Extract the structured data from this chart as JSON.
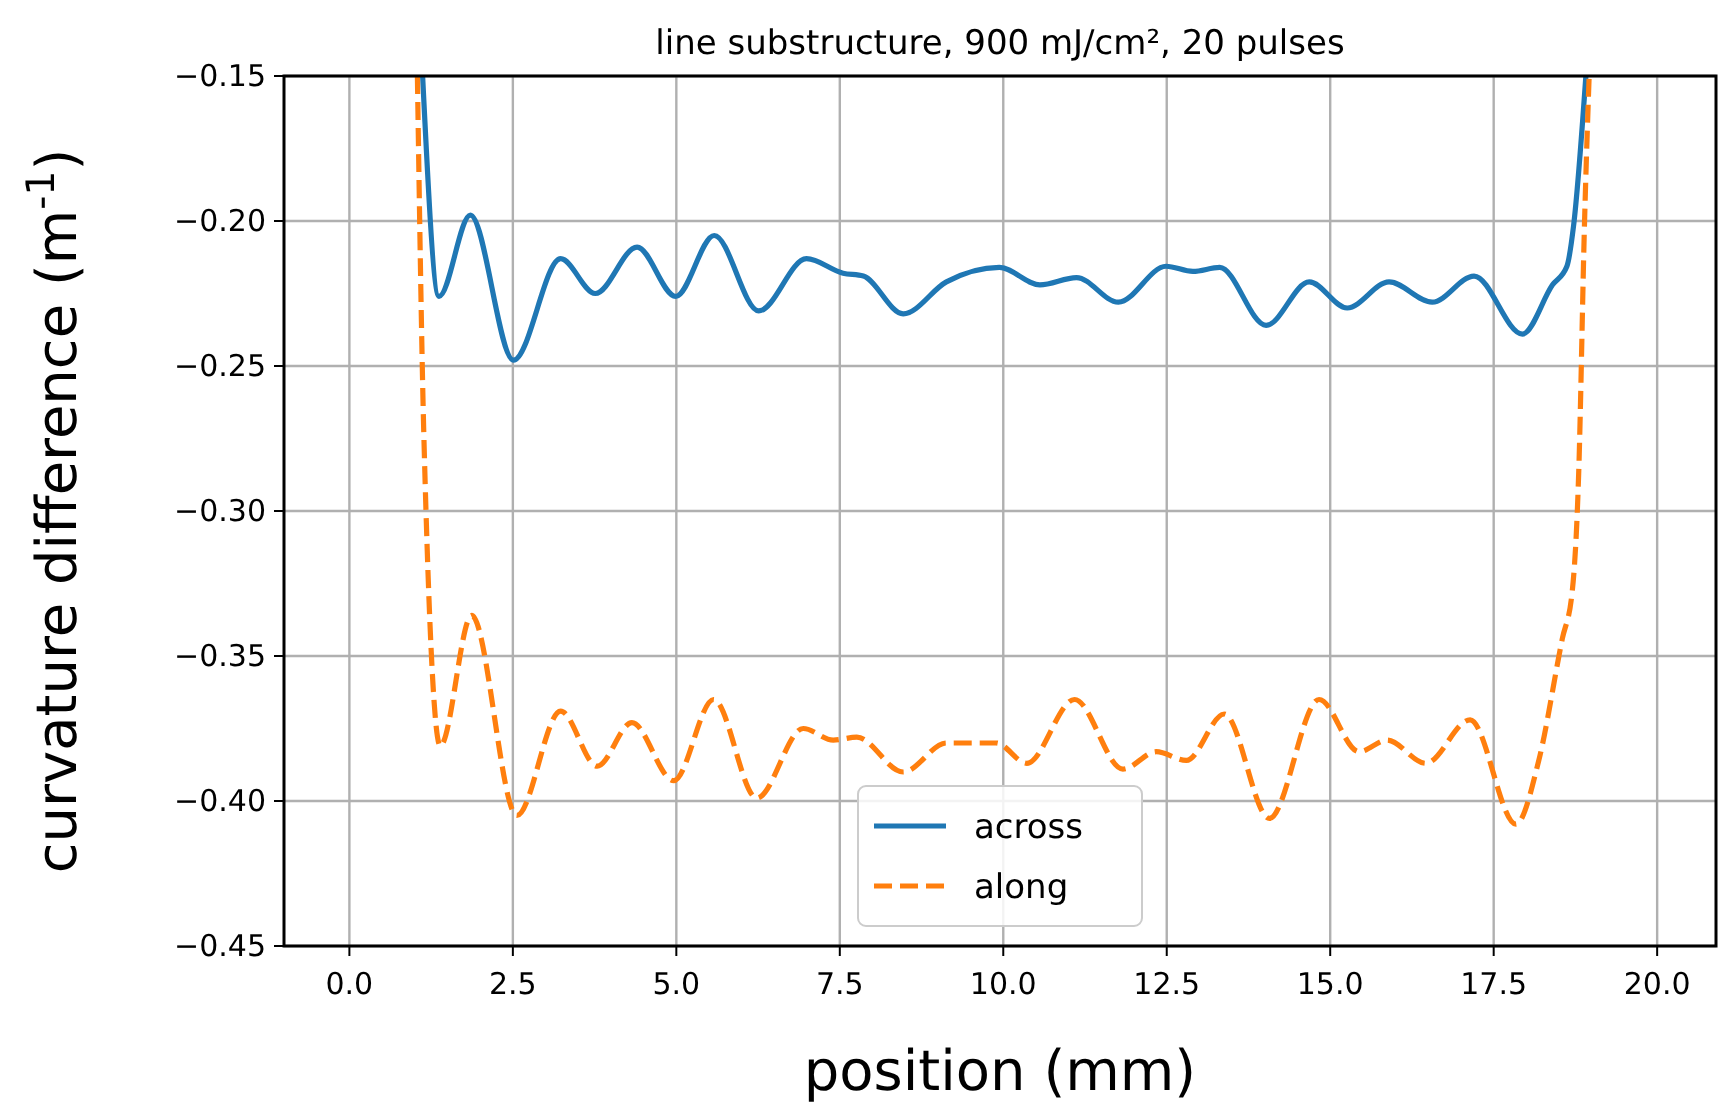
{
  "chart_data": {
    "type": "line",
    "title": "line substructure, 900 mJ/cm², 20 pulses",
    "xlabel": "position (mm)",
    "ylabel": "curvature difference (m$^{-1}$)",
    "xlim": [
      -1,
      20.9
    ],
    "xticks": [
      {
        "value": 0,
        "label": "0.0"
      },
      {
        "value": 2.5,
        "label": "2.5"
      },
      {
        "value": 5,
        "label": "5.0"
      },
      {
        "value": 7.5,
        "label": "7.5"
      },
      {
        "value": 10,
        "label": "10.0"
      },
      {
        "value": 12.5,
        "label": "12.5"
      },
      {
        "value": 15,
        "label": "15.0"
      },
      {
        "value": 17.5,
        "label": "17.5"
      },
      {
        "value": 20,
        "label": "20.0"
      }
    ],
    "ylim": [
      -0.45,
      -0.15
    ],
    "yticks": [
      {
        "value": -0.45,
        "label": "−0.45"
      },
      {
        "value": -0.4,
        "label": "−0.40"
      },
      {
        "value": -0.35,
        "label": "−0.35"
      },
      {
        "value": -0.3,
        "label": "−0.30"
      },
      {
        "value": -0.25,
        "label": "−0.25"
      },
      {
        "value": -0.2,
        "label": "−0.20"
      },
      {
        "value": -0.15,
        "label": "−0.15"
      }
    ],
    "grid": true,
    "legend": "bottom",
    "marker": "none",
    "series": [
      {
        "name": "across",
        "color": "#1f77b4",
        "line_style": "solid",
        "x": [
          1.12,
          1.37,
          1.85,
          2.51,
          3.23,
          3.76,
          4.4,
          4.99,
          5.58,
          6.26,
          6.99,
          7.55,
          7.86,
          8.47,
          9.13,
          9.94,
          10.56,
          11.12,
          11.76,
          12.49,
          12.9,
          13.31,
          14.02,
          14.68,
          15.26,
          15.9,
          16.56,
          17.2,
          17.94,
          18.4,
          18.62,
          18.72,
          18.91
        ],
        "values": [
          -0.15,
          -0.226,
          -0.198,
          -0.248,
          -0.213,
          -0.225,
          -0.209,
          -0.226,
          -0.205,
          -0.231,
          -0.213,
          -0.218,
          -0.219,
          -0.232,
          -0.221,
          -0.216,
          -0.222,
          -0.2195,
          -0.228,
          -0.2156,
          -0.2174,
          -0.216,
          -0.236,
          -0.221,
          -0.23,
          -0.221,
          -0.228,
          -0.219,
          -0.239,
          -0.222,
          -0.2156,
          -0.202,
          -0.15
        ]
      },
      {
        "name": "along",
        "color": "#ff7f0e",
        "line_style": "dashed",
        "x": [
          1.04,
          1.14,
          1.39,
          1.87,
          2.56,
          3.23,
          3.79,
          4.32,
          4.96,
          5.57,
          6.23,
          6.94,
          7.4,
          7.76,
          8.47,
          9.13,
          9.89,
          10.36,
          11.09,
          11.83,
          12.34,
          12.8,
          13.38,
          14.07,
          14.83,
          15.44,
          15.87,
          16.46,
          17.14,
          17.84,
          18.19,
          18.55,
          18.7,
          18.8,
          18.89,
          18.96
        ],
        "values": [
          -0.15,
          -0.275,
          -0.381,
          -0.336,
          -0.405,
          -0.369,
          -0.388,
          -0.373,
          -0.393,
          -0.365,
          -0.399,
          -0.375,
          -0.379,
          -0.378,
          -0.39,
          -0.38,
          -0.38,
          -0.387,
          -0.365,
          -0.389,
          -0.383,
          -0.386,
          -0.37,
          -0.406,
          -0.365,
          -0.383,
          -0.379,
          -0.387,
          -0.372,
          -0.408,
          -0.386,
          -0.344,
          -0.328,
          -0.287,
          -0.2,
          -0.15
        ]
      }
    ]
  }
}
